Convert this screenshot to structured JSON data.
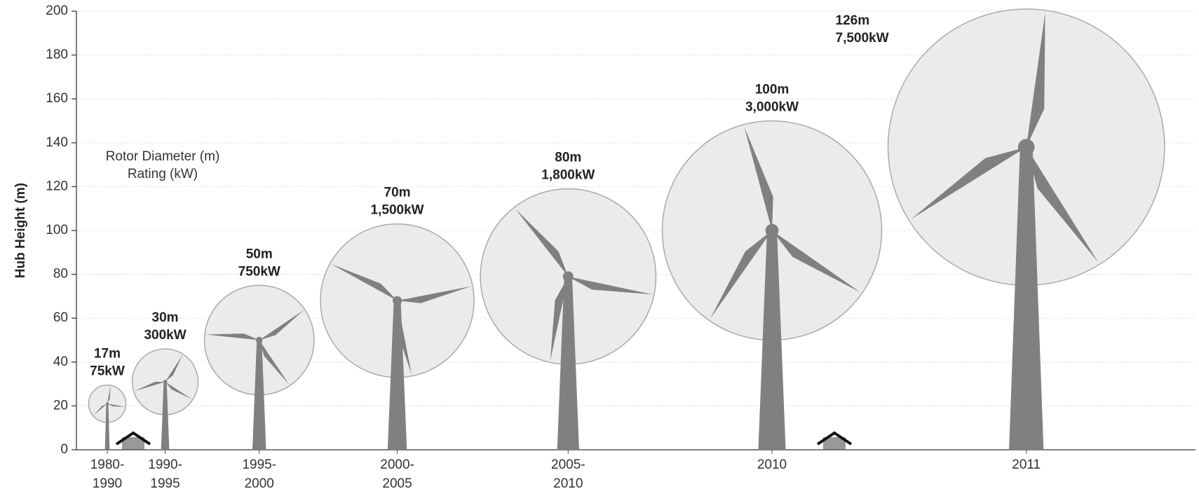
{
  "chart_data": {
    "type": "turbine",
    "y_label": "Hub Height (m)",
    "legend": [
      "Rotor Diameter (m)",
      "Rating (kW)"
    ],
    "categories": [
      "1980-\n1990",
      "1990-\n1995",
      "1995-\n2000",
      "2000-\n2005",
      "2005-\n2010",
      "2010",
      "2011"
    ],
    "hub_height": [
      21,
      31,
      50,
      68,
      79,
      100,
      138
    ],
    "rotor_diameter": {
      "values": [
        17,
        30,
        50,
        70,
        80,
        100,
        126
      ],
      "value_labels": [
        "17m",
        "30m",
        "50m",
        "70m",
        "80m",
        "100m",
        "126m"
      ]
    },
    "rating": {
      "values": [
        75,
        300,
        750,
        1500,
        1800,
        3000,
        7500
      ],
      "value_labels": [
        "75kW",
        "300kW",
        "750kW",
        "1,500kW",
        "1,800kW",
        "3,000kW",
        "7,500kW"
      ]
    },
    "ylim": [
      0,
      200
    ],
    "yticks": [
      0,
      20,
      40,
      60,
      80,
      100,
      120,
      140,
      160,
      180,
      200
    ],
    "grid": true,
    "color": "#808080",
    "rotor_color": "#ebebeb"
  }
}
